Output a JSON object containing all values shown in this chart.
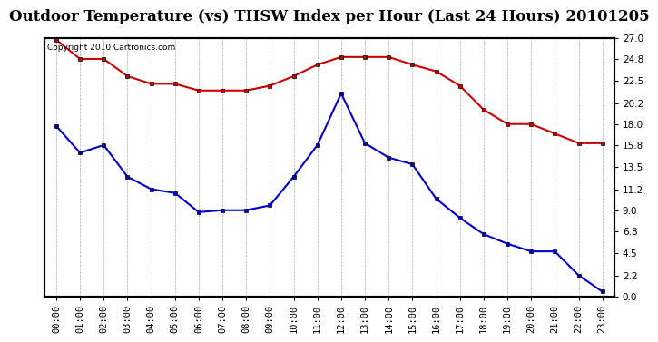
{
  "title": "Outdoor Temperature (vs) THSW Index per Hour (Last 24 Hours) 20101205",
  "copyright_text": "Copyright 2010 Cartronics.com",
  "hours": [
    "00:00",
    "01:00",
    "02:00",
    "03:00",
    "04:00",
    "05:00",
    "06:00",
    "07:00",
    "08:00",
    "09:00",
    "10:00",
    "11:00",
    "12:00",
    "13:00",
    "14:00",
    "15:00",
    "16:00",
    "17:00",
    "18:00",
    "19:00",
    "20:00",
    "21:00",
    "22:00",
    "23:00"
  ],
  "temp_blue": [
    17.8,
    15.0,
    15.8,
    12.5,
    11.2,
    10.8,
    8.8,
    9.0,
    9.0,
    9.5,
    12.5,
    15.8,
    21.2,
    16.0,
    14.5,
    13.8,
    10.2,
    8.2,
    6.5,
    5.5,
    4.7,
    4.7,
    2.2,
    0.5
  ],
  "thsw_red": [
    26.8,
    24.8,
    24.8,
    23.0,
    22.2,
    22.2,
    21.5,
    21.5,
    21.5,
    22.0,
    23.0,
    24.2,
    25.0,
    25.0,
    25.0,
    24.2,
    23.5,
    22.0,
    19.5,
    18.0,
    18.0,
    17.0,
    16.0,
    16.0
  ],
  "y_right_ticks": [
    0.0,
    2.2,
    4.5,
    6.8,
    9.0,
    11.2,
    13.5,
    15.8,
    18.0,
    20.2,
    22.5,
    24.8,
    27.0
  ],
  "ylim": [
    0.0,
    27.0
  ],
  "bg_color": "#ffffff",
  "grid_color": "#aaaaaa",
  "line_blue_color": "#0000cc",
  "line_red_color": "#cc0000",
  "title_fontsize": 12,
  "tick_fontsize": 7.5,
  "copyright_fontsize": 6.5
}
